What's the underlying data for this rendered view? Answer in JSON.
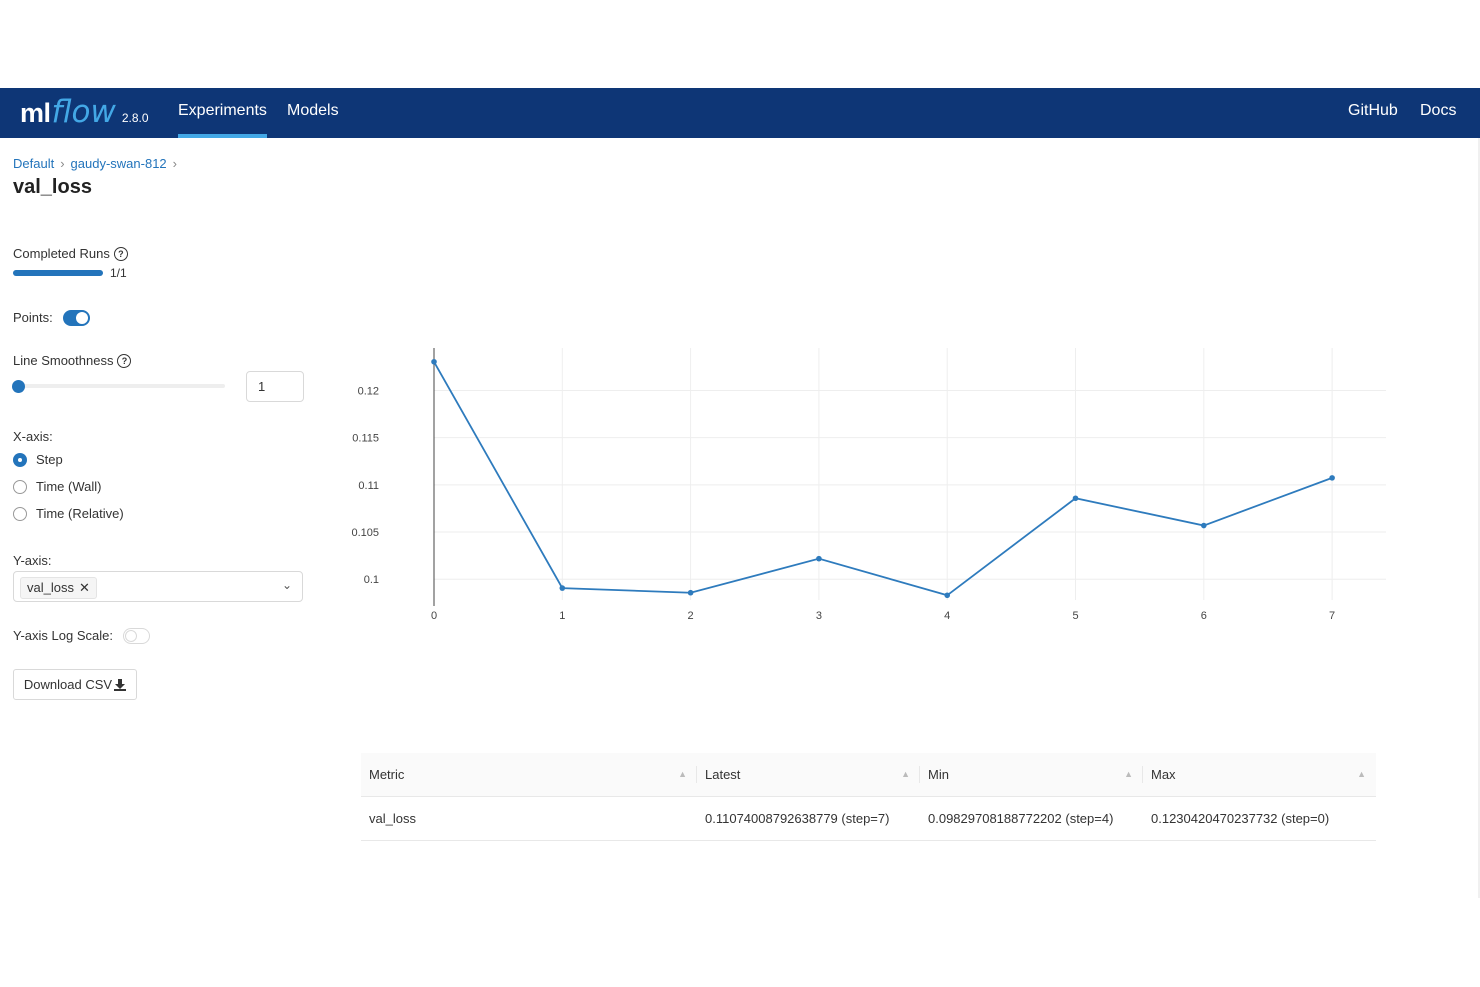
{
  "navbar": {
    "logo_ml": "ml",
    "logo_flow": "flow",
    "version": "2.8.0",
    "links": [
      "Experiments",
      "Models"
    ],
    "right_links": [
      "GitHub",
      "Docs"
    ]
  },
  "breadcrumb": {
    "items": [
      "Default",
      "gaudy-swan-812"
    ],
    "separator": "›"
  },
  "page_title": "val_loss",
  "completed_runs": {
    "label": "Completed Runs",
    "value": "1/1",
    "progress": 1.0
  },
  "points": {
    "label": "Points:",
    "enabled": true
  },
  "line_smoothness": {
    "label": "Line Smoothness",
    "value": "1",
    "slider_fraction": 0
  },
  "x_axis": {
    "label": "X-axis:",
    "options": [
      "Step",
      "Time (Wall)",
      "Time (Relative)"
    ],
    "selected": "Step"
  },
  "y_axis": {
    "label": "Y-axis:",
    "selected_tag": "val_loss"
  },
  "log_scale": {
    "label": "Y-axis Log Scale:",
    "enabled": false
  },
  "download": {
    "label": "Download CSV"
  },
  "chart_data": {
    "type": "line",
    "x": [
      0,
      1,
      2,
      3,
      4,
      5,
      6,
      7
    ],
    "series": [
      {
        "values": [
          0.12304,
          0.09906,
          0.09857,
          0.10218,
          0.0983,
          0.10858,
          0.10569,
          0.11074
        ]
      }
    ],
    "x_ticks": [
      "0",
      "1",
      "2",
      "3",
      "4",
      "5",
      "6",
      "7"
    ],
    "y_ticks": [
      "0.1",
      "0.105",
      "0.11",
      "0.115",
      "0.12"
    ],
    "xlim": [
      0,
      7.42
    ],
    "ylim": [
      0.0978,
      0.1245
    ],
    "grid": true,
    "color": "#2e7bbd"
  },
  "table": {
    "headers": [
      "Metric",
      "Latest",
      "Min",
      "Max"
    ],
    "rows": [
      [
        "val_loss",
        "0.11074008792638779 (step=7)",
        "0.09829708188772202 (step=4)",
        "0.1230420470237732 (step=0)"
      ]
    ]
  }
}
